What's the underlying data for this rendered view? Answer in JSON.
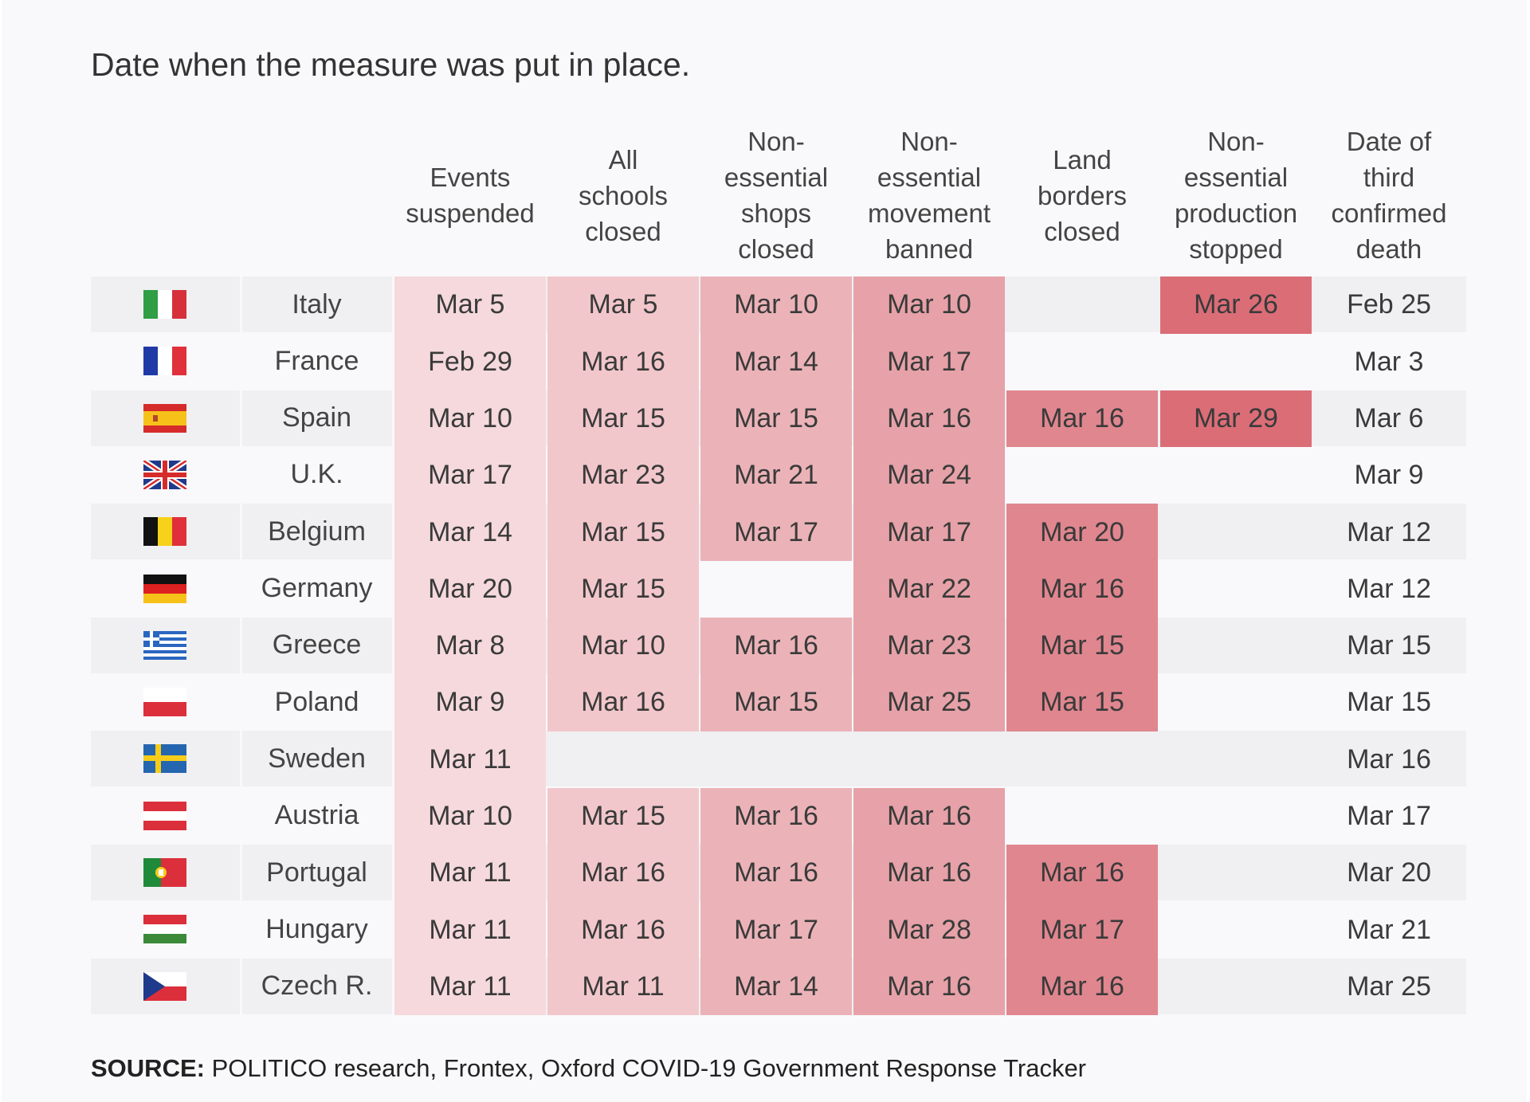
{
  "subtitle": "Date when the measure was put in place.",
  "source_label": "SOURCE:",
  "source_text": " POLITICO research, Frontex, Oxford COVID-19 Government Response Tracker",
  "colors": {
    "events": "#f5d9dc",
    "schools": "#f2c7cb",
    "shops": "#ebb3b8",
    "movement": "#e6a2a8",
    "borders": "#e0868f",
    "production": "#db6d77",
    "band": "#f0f0f2"
  },
  "chart_data": {
    "type": "table",
    "columns": [
      {
        "key": "events",
        "label": [
          "Events",
          "suspended"
        ]
      },
      {
        "key": "schools",
        "label": [
          "All",
          "schools",
          "closed"
        ]
      },
      {
        "key": "shops",
        "label": [
          "Non-",
          "essential",
          "shops",
          "closed"
        ]
      },
      {
        "key": "movement",
        "label": [
          "Non-",
          "essential",
          "movement",
          "banned"
        ]
      },
      {
        "key": "borders",
        "label": [
          "Land",
          "borders",
          "closed"
        ]
      },
      {
        "key": "production",
        "label": [
          "Non-",
          "essential",
          "production",
          "stopped"
        ]
      },
      {
        "key": "death",
        "label": [
          "Date of",
          "third",
          "confirmed",
          "death"
        ]
      }
    ],
    "rows": [
      {
        "country": "Italy",
        "flag": "italy-flag",
        "values": [
          "Mar 5",
          "Mar 5",
          "Mar 10",
          "Mar 10",
          "",
          "Mar 26",
          "Feb 25"
        ]
      },
      {
        "country": "France",
        "flag": "france-flag",
        "values": [
          "Feb 29",
          "Mar 16",
          "Mar 14",
          "Mar 17",
          "",
          "",
          "Mar 3"
        ]
      },
      {
        "country": "Spain",
        "flag": "spain-flag",
        "values": [
          "Mar 10",
          "Mar 15",
          "Mar 15",
          "Mar 16",
          "Mar 16",
          "Mar 29",
          "Mar 6"
        ]
      },
      {
        "country": "U.K.",
        "flag": "uk-flag",
        "values": [
          "Mar 17",
          "Mar 23",
          "Mar 21",
          "Mar 24",
          "",
          "",
          "Mar 9"
        ]
      },
      {
        "country": "Belgium",
        "flag": "belgium-flag",
        "values": [
          "Mar 14",
          "Mar 15",
          "Mar 17",
          "Mar 17",
          "Mar 20",
          "",
          "Mar 12"
        ]
      },
      {
        "country": "Germany",
        "flag": "germany-flag",
        "values": [
          "Mar 20",
          "Mar 15",
          "",
          "Mar 22",
          "Mar 16",
          "",
          "Mar 12"
        ]
      },
      {
        "country": "Greece",
        "flag": "greece-flag",
        "values": [
          "Mar 8",
          "Mar 10",
          "Mar 16",
          "Mar 23",
          "Mar 15",
          "",
          "Mar 15"
        ]
      },
      {
        "country": "Poland",
        "flag": "poland-flag",
        "values": [
          "Mar 9",
          "Mar 16",
          "Mar 15",
          "Mar 25",
          "Mar 15",
          "",
          "Mar 15"
        ]
      },
      {
        "country": "Sweden",
        "flag": "sweden-flag",
        "values": [
          "Mar 11",
          "",
          "",
          "",
          "",
          "",
          "Mar 16"
        ]
      },
      {
        "country": "Austria",
        "flag": "austria-flag",
        "values": [
          "Mar 10",
          "Mar 15",
          "Mar 16",
          "Mar 16",
          "",
          "",
          "Mar 17"
        ]
      },
      {
        "country": "Portugal",
        "flag": "portugal-flag",
        "values": [
          "Mar 11",
          "Mar 16",
          "Mar 16",
          "Mar 16",
          "Mar 16",
          "",
          "Mar 20"
        ]
      },
      {
        "country": "Hungary",
        "flag": "hungary-flag",
        "values": [
          "Mar 11",
          "Mar 16",
          "Mar 17",
          "Mar 28",
          "Mar 17",
          "",
          "Mar 21"
        ]
      },
      {
        "country": "Czech R.",
        "flag": "czech-flag",
        "values": [
          "Mar 11",
          "Mar 11",
          "Mar 14",
          "Mar 16",
          "Mar 16",
          "",
          "Mar 25"
        ]
      }
    ]
  }
}
